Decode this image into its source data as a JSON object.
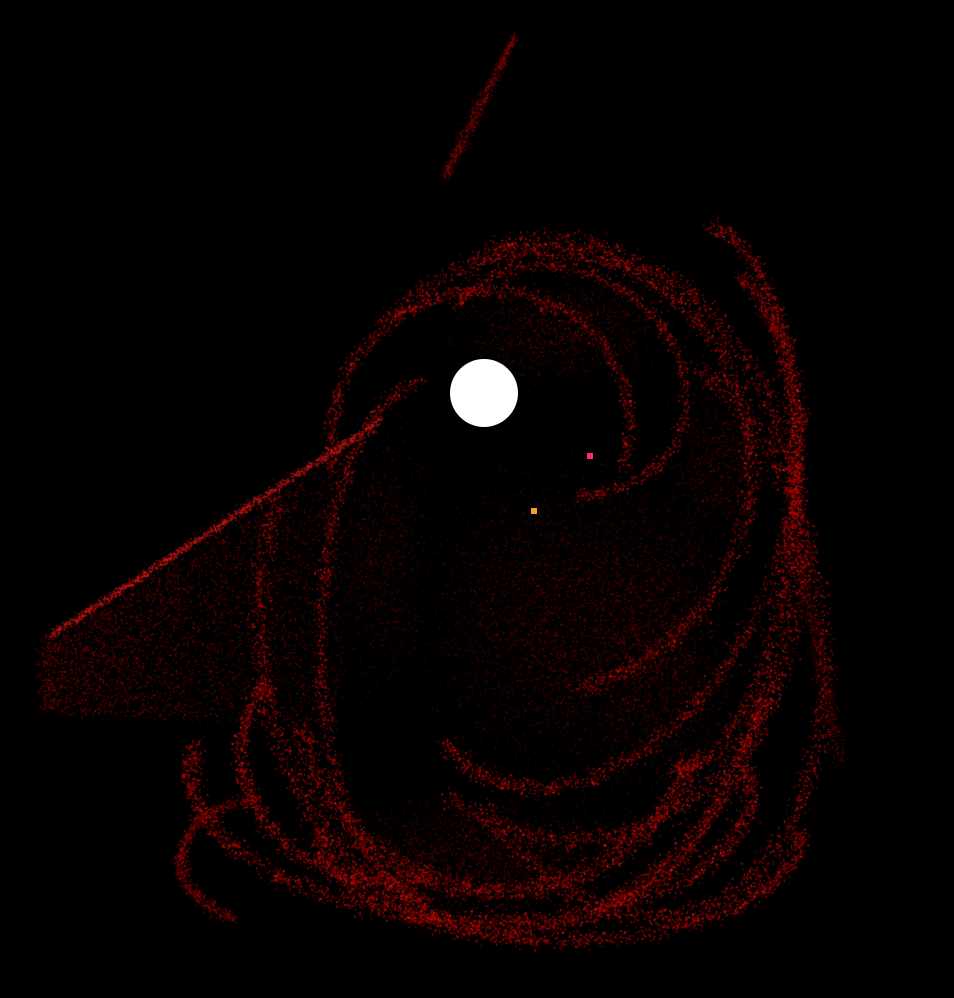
{
  "scene": {
    "background_color": "#000000",
    "particle_color": "#b00000",
    "particle_highlight_color": "#e01818",
    "orb_color": "#ffffff",
    "marker_colors": {
      "pink": "#ff2a6d",
      "orange": "#ff9a3c"
    },
    "icons": {
      "orb": "white-circle-orb",
      "markers": "small-square-marker"
    }
  }
}
